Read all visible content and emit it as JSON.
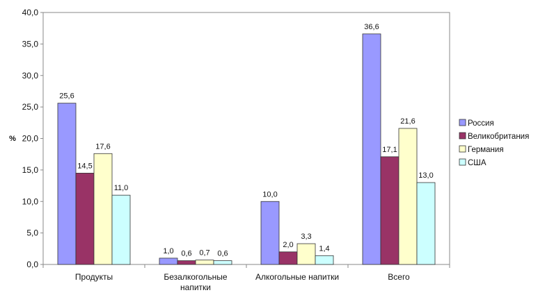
{
  "chart_data": {
    "type": "bar",
    "title": "",
    "ylabel": "%",
    "xlabel": "",
    "ylim": [
      0,
      40
    ],
    "yticks": [
      "0,0",
      "5,0",
      "10,0",
      "15,0",
      "20,0",
      "25,0",
      "30,0",
      "35,0",
      "40,0"
    ],
    "categories": [
      [
        "Продукты"
      ],
      [
        "Безалкогольные",
        "напитки"
      ],
      [
        "Алкогольные напитки"
      ],
      [
        "Всего"
      ]
    ],
    "series": [
      {
        "name": "Россия",
        "color": "#9999ff",
        "values": [
          25.6,
          1.0,
          10.0,
          36.6
        ],
        "labels": [
          "25,6",
          "1,0",
          "10,0",
          "36,6"
        ]
      },
      {
        "name": "Великобритания",
        "color": "#993366",
        "values": [
          14.5,
          0.6,
          2.0,
          17.1
        ],
        "labels": [
          "14,5",
          "0,6",
          "2,0",
          "17,1"
        ]
      },
      {
        "name": "Германия",
        "color": "#ffffcc",
        "values": [
          17.6,
          0.7,
          3.3,
          21.6
        ],
        "labels": [
          "17,6",
          "0,7",
          "3,3",
          "21,6"
        ]
      },
      {
        "name": "США",
        "color": "#ccffff",
        "values": [
          11.0,
          0.6,
          1.4,
          13.0
        ],
        "labels": [
          "11,0",
          "0,6",
          "1,4",
          "13,0"
        ]
      }
    ],
    "legend_position": "right",
    "grid": false
  }
}
